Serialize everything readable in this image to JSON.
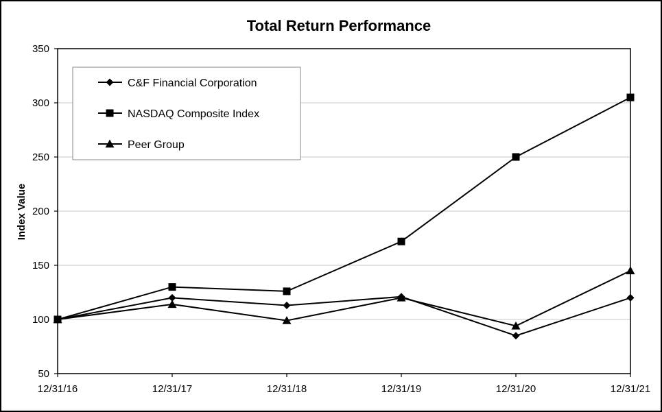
{
  "chart_data": {
    "type": "line",
    "title": "Total Return Performance",
    "xlabel": "",
    "ylabel": "Index Value",
    "categories": [
      "12/31/16",
      "12/31/17",
      "12/31/18",
      "12/31/19",
      "12/31/20",
      "12/31/21"
    ],
    "ylim": [
      50,
      350
    ],
    "yticks": [
      50,
      100,
      150,
      200,
      250,
      300,
      350
    ],
    "grid": true,
    "legend_position": "top-left",
    "series": [
      {
        "name": "C&F Financial Corporation",
        "marker": "diamond",
        "values": [
          100,
          120,
          113,
          121,
          85,
          120
        ]
      },
      {
        "name": "NASDAQ Composite Index",
        "marker": "square",
        "values": [
          100,
          130,
          126,
          172,
          250,
          305
        ]
      },
      {
        "name": "Peer Group",
        "marker": "triangle",
        "values": [
          100,
          114,
          99,
          120,
          94,
          145
        ]
      }
    ],
    "colors": {
      "line": "#000000",
      "grid": "#c8c8c8",
      "background": "#ffffff"
    }
  }
}
